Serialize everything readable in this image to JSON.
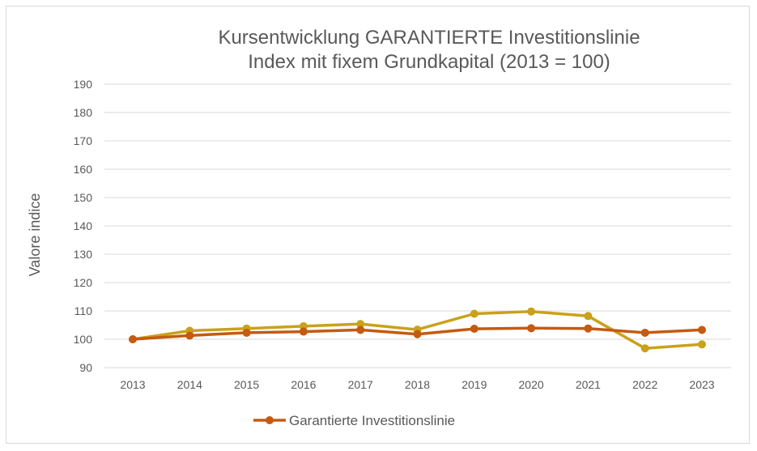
{
  "chart_data": {
    "type": "line",
    "title": "Kursentwicklung GARANTIERTE Investitionslinie",
    "subtitle": "Index mit fixem Grundkapital (2013 = 100)",
    "xlabel": "",
    "ylabel": "Valore indice",
    "ylim": [
      90,
      190
    ],
    "yticks": [
      90,
      100,
      110,
      120,
      130,
      140,
      150,
      160,
      170,
      180,
      190
    ],
    "categories": [
      "2013",
      "2014",
      "2015",
      "2016",
      "2017",
      "2018",
      "2019",
      "2020",
      "2021",
      "2022",
      "2023"
    ],
    "grid": true,
    "legend_position": "bottom",
    "series": [
      {
        "name": "",
        "color": "#c9a21a",
        "values": [
          100.0,
          103.0,
          103.8,
          104.6,
          105.4,
          103.4,
          109.0,
          109.8,
          108.2,
          96.8,
          98.2
        ]
      },
      {
        "name": "Garantierte Investitionslinie",
        "color": "#c55a11",
        "values": [
          100.0,
          101.3,
          102.3,
          102.7,
          103.3,
          101.8,
          103.7,
          103.9,
          103.8,
          102.3,
          103.3
        ]
      }
    ]
  }
}
